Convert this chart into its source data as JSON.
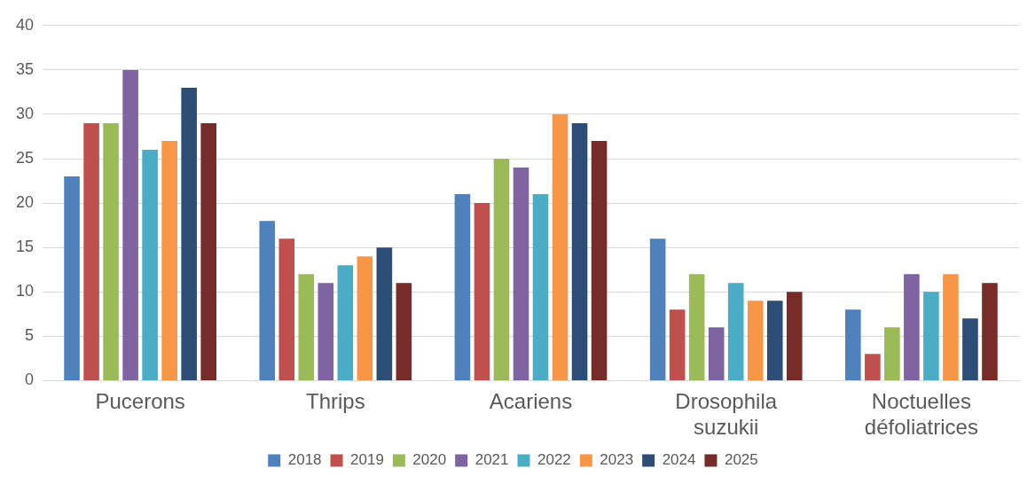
{
  "chart_data": {
    "type": "bar",
    "categories": [
      "Pucerons",
      "Thrips",
      "Acariens",
      "Drosophila suzukii",
      "Noctuelles défoliatrices"
    ],
    "series": [
      {
        "name": "2018",
        "color": "#4f81bd",
        "values": [
          23,
          18,
          21,
          16,
          8
        ]
      },
      {
        "name": "2019",
        "color": "#c0504d",
        "values": [
          29,
          16,
          20,
          8,
          3
        ]
      },
      {
        "name": "2020",
        "color": "#9bbb59",
        "values": [
          29,
          12,
          25,
          12,
          6
        ]
      },
      {
        "name": "2021",
        "color": "#8064a2",
        "values": [
          35,
          11,
          24,
          6,
          12
        ]
      },
      {
        "name": "2022",
        "color": "#4bacc6",
        "values": [
          26,
          13,
          21,
          11,
          10
        ]
      },
      {
        "name": "2023",
        "color": "#f79646",
        "values": [
          27,
          14,
          30,
          9,
          12
        ]
      },
      {
        "name": "2024",
        "color": "#2c4d75",
        "values": [
          33,
          15,
          29,
          9,
          7
        ]
      },
      {
        "name": "2025",
        "color": "#772c2a",
        "values": [
          29,
          11,
          27,
          10,
          11
        ]
      }
    ],
    "ylim": [
      0,
      40
    ],
    "yticks": [
      0,
      5,
      10,
      15,
      20,
      25,
      30,
      35,
      40
    ],
    "grid": "y",
    "legend": "bottom"
  }
}
